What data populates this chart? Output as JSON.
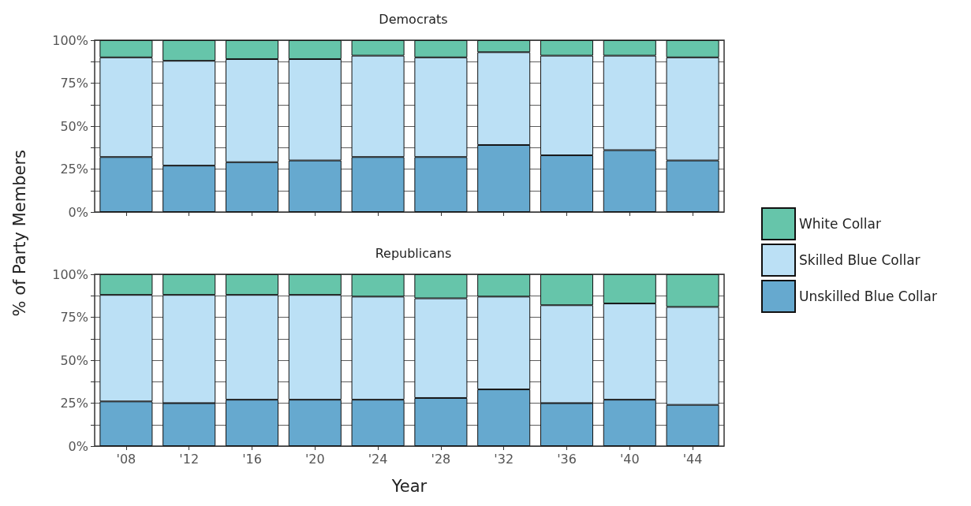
{
  "chart_data": [
    {
      "type": "bar",
      "title": "Democrats",
      "ylabel": "% of Party Members",
      "stacked": true,
      "grid": "y",
      "tick_labels": "y",
      "categories": [
        null,
        null,
        null,
        null,
        null,
        null,
        null,
        null,
        null,
        null
      ],
      "ylim": [
        0,
        100
      ],
      "yticks": [
        {
          "value": 0,
          "label": "0%"
        },
        {
          "value": 12.5,
          "label": null
        },
        {
          "value": 25,
          "label": "25%"
        },
        {
          "value": 37.5,
          "label": null
        },
        {
          "value": 50,
          "label": "50%"
        },
        {
          "value": 62.5,
          "label": null
        },
        {
          "value": 75,
          "label": "75%"
        },
        {
          "value": 87.5,
          "label": null
        },
        {
          "value": 100,
          "label": "100%"
        }
      ],
      "series": [
        {
          "color": "#66a9cf",
          "values": [
            32,
            27,
            29,
            30,
            32,
            32,
            39,
            33,
            36,
            30
          ]
        },
        {
          "color": "#bbe0f5",
          "values": [
            58,
            61,
            60,
            59,
            59,
            58,
            54,
            58,
            55,
            60
          ]
        },
        {
          "color": "#66c5aa",
          "values": [
            10,
            12,
            11,
            11,
            9,
            10,
            7,
            9,
            9,
            10
          ]
        }
      ]
    },
    {
      "type": "bar",
      "title": "Republicans",
      "xlabel": "Year",
      "stacked": true,
      "grid": "y",
      "legend": "right",
      "categories": [
        "'08",
        "'12",
        "'16",
        "'20",
        "'24",
        "'28",
        "'32",
        "'36",
        "'40",
        "'44"
      ],
      "ylim": [
        0,
        100
      ],
      "yticks": [
        {
          "value": 0,
          "label": "0%"
        },
        {
          "value": 12.5,
          "label": null
        },
        {
          "value": 25,
          "label": "25%"
        },
        {
          "value": 37.5,
          "label": null
        },
        {
          "value": 50,
          "label": "50%"
        },
        {
          "value": 62.5,
          "label": null
        },
        {
          "value": 75,
          "label": "75%"
        },
        {
          "value": 87.5,
          "label": null
        },
        {
          "value": 100,
          "label": "100%"
        }
      ],
      "series": [
        {
          "name": "Unskilled Blue Collar",
          "color": "#66a9cf",
          "values": [
            26,
            25,
            27,
            27,
            27,
            28,
            33,
            25,
            27,
            24
          ]
        },
        {
          "name": "Skilled Blue Collar",
          "color": "#bbe0f5",
          "values": [
            62,
            63,
            61,
            61,
            60,
            58,
            54,
            57,
            56,
            57
          ]
        },
        {
          "name": "White Collar",
          "color": "#66c5aa",
          "values": [
            12,
            12,
            12,
            12,
            13,
            14,
            13,
            18,
            17,
            19
          ]
        }
      ]
    }
  ]
}
